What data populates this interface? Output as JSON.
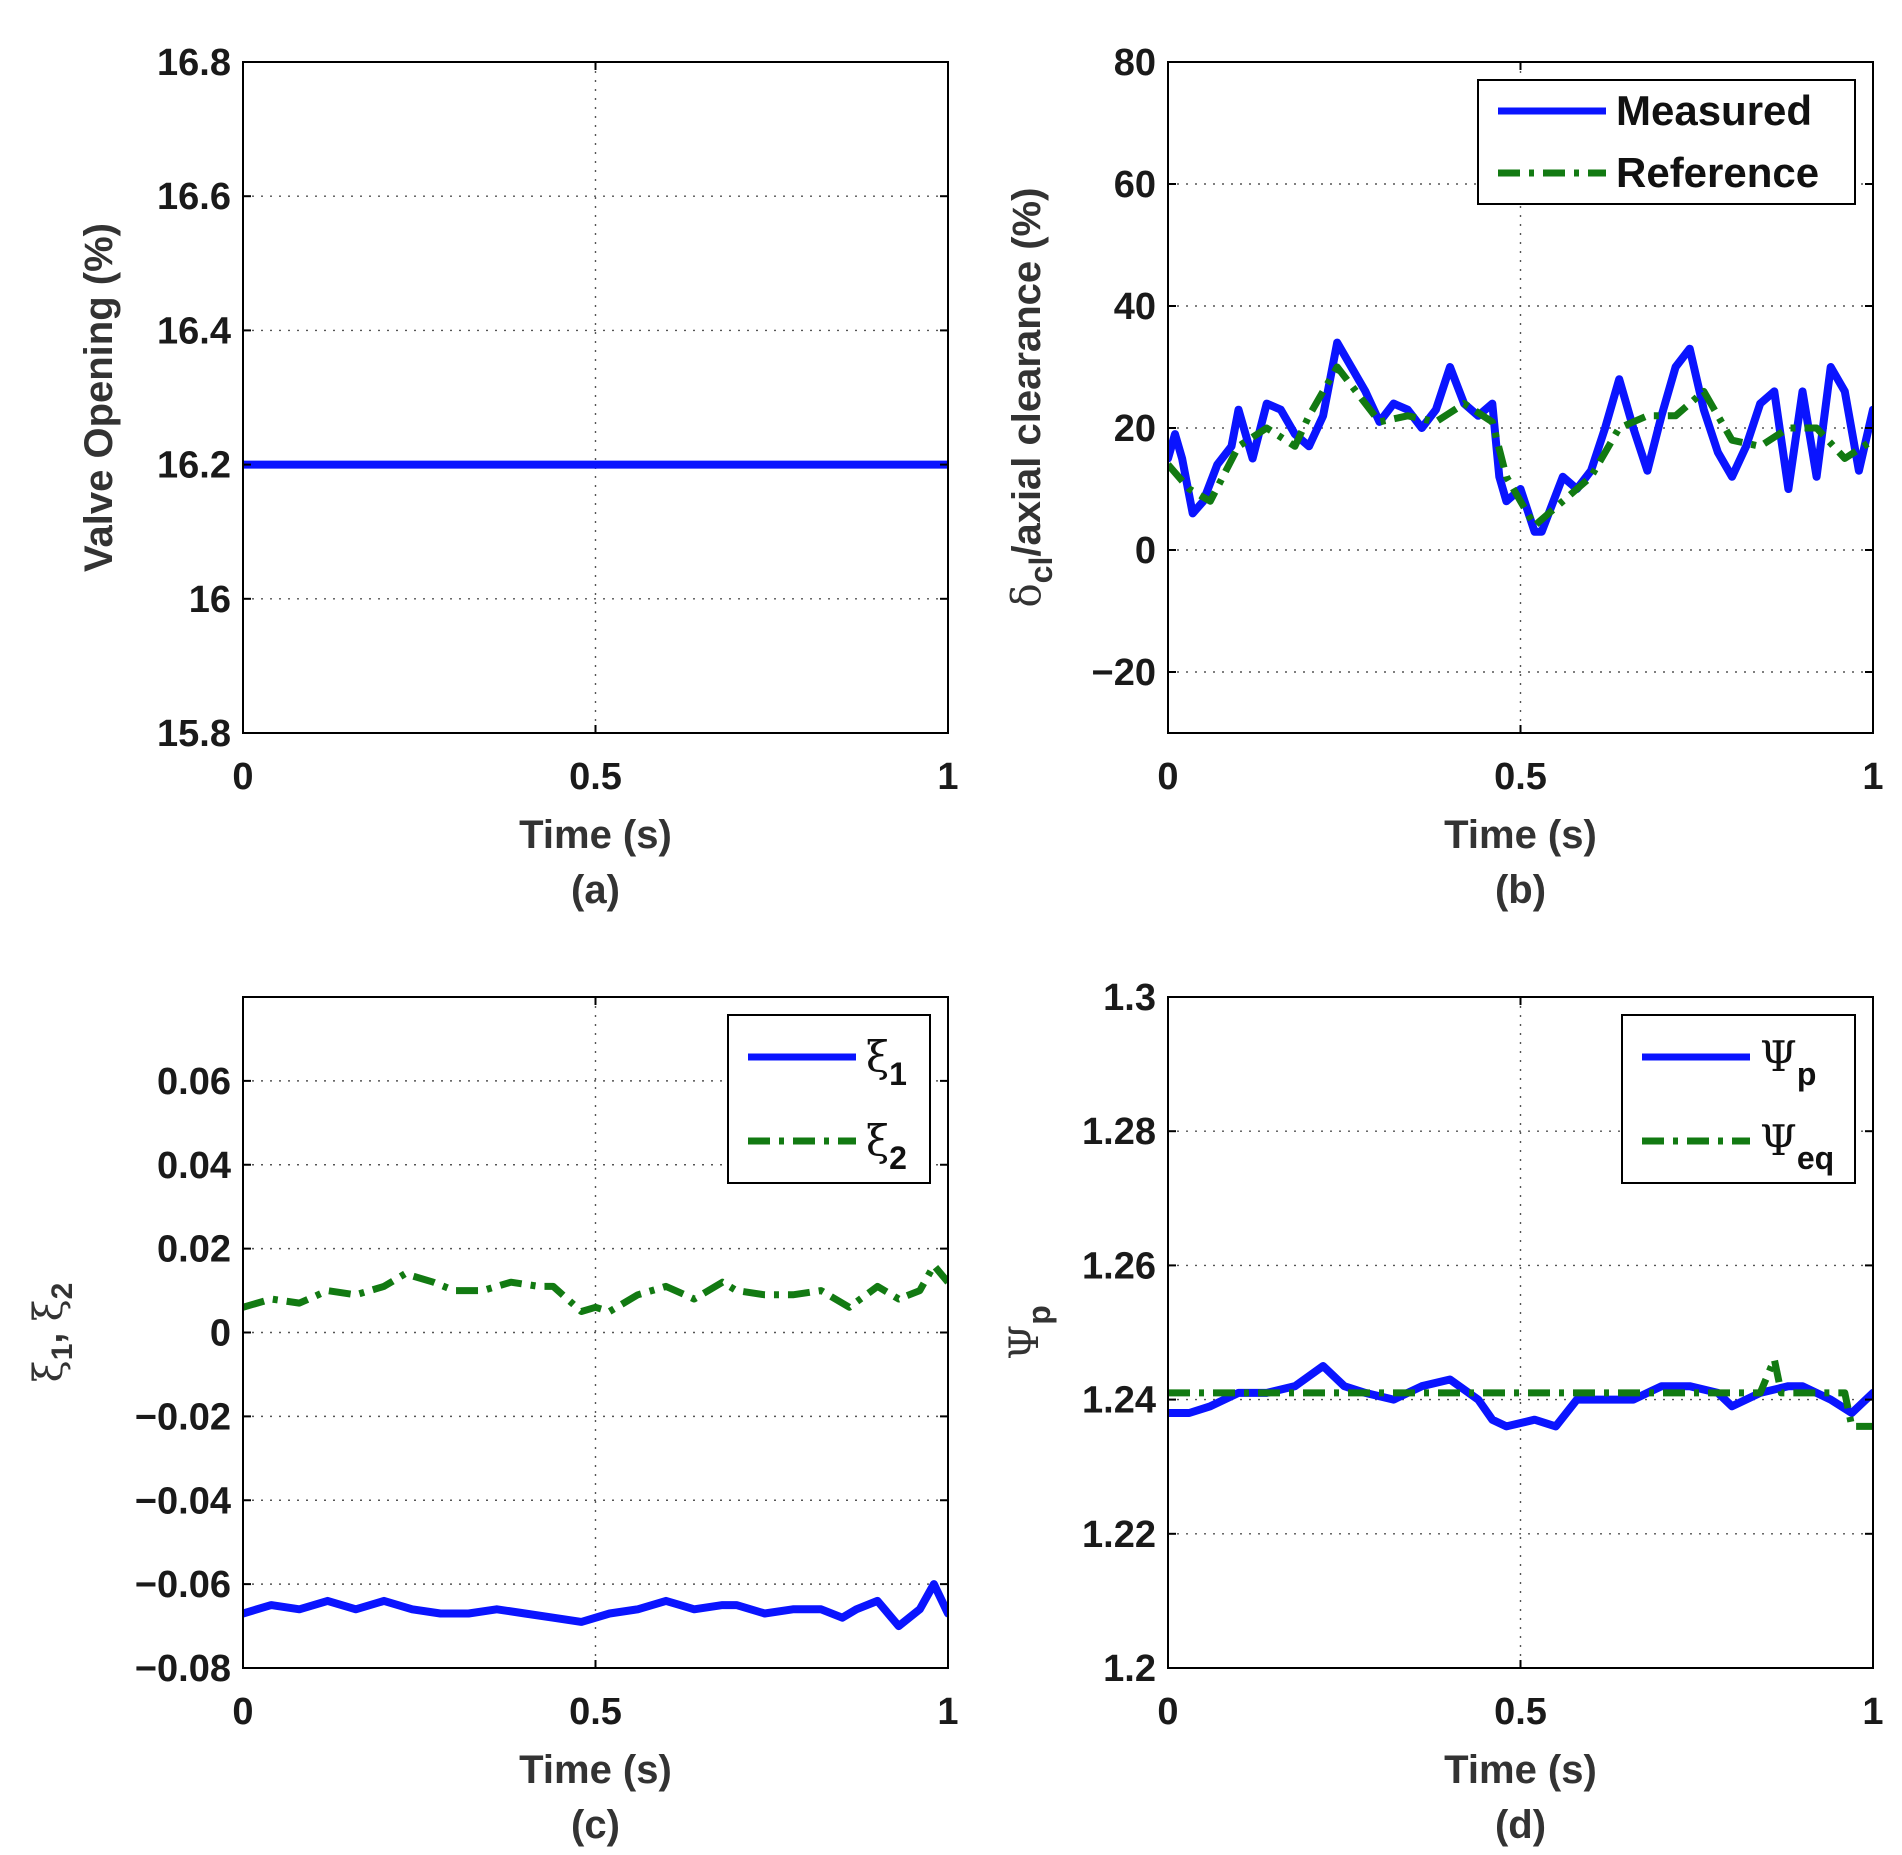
{
  "colors": {
    "blue": "#0a14ff",
    "green": "#127a12",
    "axis": "#000000",
    "text": "#333333"
  },
  "chart_data": [
    {
      "id": "a",
      "type": "line",
      "panel_label": "(a)",
      "xlabel": "Time (s)",
      "ylabel": "Valve Opening (%)",
      "xlim": [
        0,
        1
      ],
      "ylim": [
        15.8,
        16.8
      ],
      "xticks": [
        0,
        0.5,
        1
      ],
      "xtick_labels": [
        "0",
        "0.5",
        "1"
      ],
      "yticks": [
        15.8,
        16,
        16.2,
        16.4,
        16.6,
        16.8
      ],
      "ytick_labels": [
        "15.8",
        "16",
        "16.2",
        "16.4",
        "16.6",
        "16.8"
      ],
      "grid": true,
      "legend": null,
      "series": [
        {
          "name": "Valve Opening",
          "color": "#0a14ff",
          "style": "solid",
          "x": [
            0,
            1
          ],
          "y": [
            16.2,
            16.2
          ]
        }
      ]
    },
    {
      "id": "b",
      "type": "line",
      "panel_label": "(b)",
      "xlabel": "Time (s)",
      "ylabel": "δcl/axial clearance (%)",
      "ylabel_parts": {
        "symbol": "δ",
        "sub": "cl",
        "rest": "/axial clearance (%)"
      },
      "xlim": [
        0,
        1
      ],
      "ylim": [
        -30,
        80
      ],
      "xticks": [
        0,
        0.5,
        1
      ],
      "xtick_labels": [
        "0",
        "0.5",
        "1"
      ],
      "yticks": [
        -20,
        0,
        20,
        40,
        60,
        80
      ],
      "ytick_labels": [
        "−20",
        "0",
        "20",
        "40",
        "60",
        "80"
      ],
      "grid": true,
      "legend": {
        "placement": "top-right"
      },
      "series": [
        {
          "name": "Measured",
          "legend_label": "Measured",
          "color": "#0a14ff",
          "style": "solid",
          "x": [
            0,
            0.01,
            0.02,
            0.035,
            0.05,
            0.07,
            0.09,
            0.1,
            0.12,
            0.14,
            0.16,
            0.18,
            0.2,
            0.22,
            0.24,
            0.26,
            0.28,
            0.3,
            0.32,
            0.34,
            0.36,
            0.38,
            0.4,
            0.42,
            0.44,
            0.46,
            0.47,
            0.48,
            0.5,
            0.52,
            0.53,
            0.56,
            0.58,
            0.6,
            0.62,
            0.64,
            0.66,
            0.68,
            0.7,
            0.72,
            0.74,
            0.76,
            0.78,
            0.8,
            0.82,
            0.84,
            0.86,
            0.88,
            0.9,
            0.92,
            0.94,
            0.96,
            0.98,
            1.0
          ],
          "y": [
            15,
            19,
            15,
            6,
            8,
            14,
            17,
            23,
            15,
            24,
            23,
            19,
            17,
            22,
            34,
            30,
            26,
            21,
            24,
            23,
            20,
            23,
            30,
            24,
            22,
            24,
            12,
            8,
            10,
            3,
            3,
            12,
            10,
            13,
            20,
            28,
            20,
            13,
            22,
            30,
            33,
            23,
            16,
            12,
            17,
            24,
            26,
            10,
            26,
            12,
            30,
            26,
            13,
            23
          ]
        },
        {
          "name": "Reference",
          "legend_label": "Reference",
          "color": "#127a12",
          "style": "dashdot",
          "x": [
            0,
            0.03,
            0.06,
            0.1,
            0.14,
            0.18,
            0.2,
            0.22,
            0.24,
            0.26,
            0.28,
            0.3,
            0.34,
            0.38,
            0.42,
            0.46,
            0.48,
            0.52,
            0.56,
            0.6,
            0.64,
            0.68,
            0.72,
            0.76,
            0.8,
            0.84,
            0.88,
            0.92,
            0.96,
            1.0
          ],
          "y": [
            14,
            10,
            8,
            17,
            20,
            17,
            22,
            26,
            30,
            27,
            24,
            21,
            22,
            21,
            24,
            21,
            12,
            4,
            8,
            12,
            20,
            22,
            22,
            26,
            18,
            17,
            20,
            20,
            15,
            18
          ]
        }
      ]
    },
    {
      "id": "c",
      "type": "line",
      "panel_label": "(c)",
      "xlabel": "Time (s)",
      "ylabel": "ξ1, ξ2",
      "ylabel_parts": {
        "s1": "ξ",
        "sub1": "1",
        "sep": ", ",
        "s2": "ξ",
        "sub2": "2"
      },
      "xlim": [
        0,
        1
      ],
      "ylim": [
        -0.08,
        0.08
      ],
      "xticks": [
        0,
        0.5,
        1
      ],
      "xtick_labels": [
        "0",
        "0.5",
        "1"
      ],
      "yticks": [
        -0.08,
        -0.06,
        -0.04,
        -0.02,
        0,
        0.02,
        0.04,
        0.06
      ],
      "ytick_labels": [
        "−0.08",
        "−0.06",
        "−0.04",
        "−0.02",
        "0",
        "0.02",
        "0.04",
        "0.06"
      ],
      "grid": true,
      "legend": {
        "placement": "top-right"
      },
      "series": [
        {
          "name": "ξ1",
          "legend_symbol": "ξ",
          "legend_sub": "1",
          "color": "#0a14ff",
          "style": "solid",
          "x": [
            0,
            0.04,
            0.08,
            0.12,
            0.16,
            0.2,
            0.24,
            0.28,
            0.32,
            0.36,
            0.4,
            0.44,
            0.48,
            0.52,
            0.56,
            0.6,
            0.62,
            0.64,
            0.68,
            0.7,
            0.74,
            0.78,
            0.82,
            0.85,
            0.87,
            0.9,
            0.93,
            0.96,
            0.98,
            1.0
          ],
          "y": [
            -0.067,
            -0.065,
            -0.066,
            -0.064,
            -0.066,
            -0.064,
            -0.066,
            -0.067,
            -0.067,
            -0.066,
            -0.067,
            -0.068,
            -0.069,
            -0.067,
            -0.066,
            -0.064,
            -0.065,
            -0.066,
            -0.065,
            -0.065,
            -0.067,
            -0.066,
            -0.066,
            -0.068,
            -0.066,
            -0.064,
            -0.07,
            -0.066,
            -0.06,
            -0.067
          ]
        },
        {
          "name": "ξ2",
          "legend_symbol": "ξ",
          "legend_sub": "2",
          "color": "#127a12",
          "style": "dashdot",
          "x": [
            0,
            0.04,
            0.08,
            0.12,
            0.16,
            0.2,
            0.23,
            0.27,
            0.3,
            0.34,
            0.38,
            0.42,
            0.44,
            0.46,
            0.48,
            0.5,
            0.52,
            0.56,
            0.6,
            0.64,
            0.68,
            0.7,
            0.74,
            0.78,
            0.82,
            0.86,
            0.9,
            0.93,
            0.96,
            0.98,
            1.0
          ],
          "y": [
            0.006,
            0.008,
            0.007,
            0.01,
            0.009,
            0.011,
            0.014,
            0.012,
            0.01,
            0.01,
            0.012,
            0.011,
            0.011,
            0.008,
            0.005,
            0.006,
            0.005,
            0.009,
            0.011,
            0.008,
            0.012,
            0.01,
            0.009,
            0.009,
            0.01,
            0.006,
            0.011,
            0.008,
            0.01,
            0.016,
            0.012
          ]
        }
      ]
    },
    {
      "id": "d",
      "type": "line",
      "panel_label": "(d)",
      "xlabel": "Time (s)",
      "ylabel": "Ψp",
      "ylabel_parts": {
        "symbol": "Ψ",
        "sub": "p"
      },
      "xlim": [
        0,
        1
      ],
      "ylim": [
        1.2,
        1.3
      ],
      "xticks": [
        0,
        0.5,
        1
      ],
      "xtick_labels": [
        "0",
        "0.5",
        "1"
      ],
      "yticks": [
        1.2,
        1.22,
        1.24,
        1.26,
        1.28,
        1.3
      ],
      "ytick_labels": [
        "1.2",
        "1.22",
        "1.24",
        "1.26",
        "1.28",
        "1.3"
      ],
      "grid": true,
      "legend": {
        "placement": "top-right"
      },
      "series": [
        {
          "name": "Ψp",
          "legend_symbol": "Ψ",
          "legend_sub": "p",
          "color": "#0a14ff",
          "style": "solid",
          "x": [
            0,
            0.03,
            0.06,
            0.1,
            0.14,
            0.18,
            0.22,
            0.25,
            0.28,
            0.32,
            0.36,
            0.4,
            0.44,
            0.46,
            0.48,
            0.52,
            0.55,
            0.58,
            0.62,
            0.66,
            0.7,
            0.74,
            0.78,
            0.8,
            0.84,
            0.88,
            0.9,
            0.94,
            0.97,
            1.0
          ],
          "y": [
            1.238,
            1.238,
            1.239,
            1.241,
            1.241,
            1.242,
            1.245,
            1.242,
            1.241,
            1.24,
            1.242,
            1.243,
            1.24,
            1.237,
            1.236,
            1.237,
            1.236,
            1.24,
            1.24,
            1.24,
            1.242,
            1.242,
            1.241,
            1.239,
            1.241,
            1.242,
            1.242,
            1.24,
            1.238,
            1.241
          ]
        },
        {
          "name": "Ψeq",
          "legend_symbol": "Ψ",
          "legend_sub": "eq",
          "color": "#127a12",
          "style": "dashdot",
          "x": [
            0,
            0.84,
            0.86,
            0.87,
            0.96,
            0.97,
            1.0
          ],
          "y": [
            1.241,
            1.241,
            1.246,
            1.241,
            1.241,
            1.236,
            1.236
          ]
        }
      ]
    }
  ]
}
